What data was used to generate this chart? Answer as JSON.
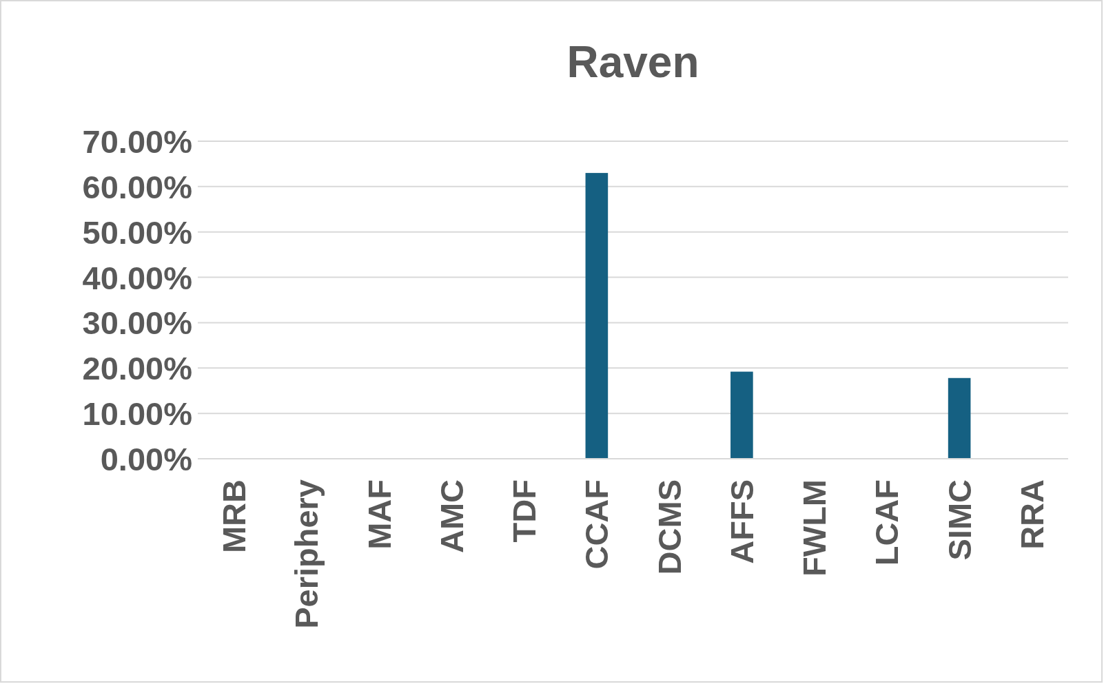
{
  "chart_data": {
    "type": "bar",
    "title": "Raven",
    "categories": [
      "MRB",
      "Periphery",
      "MAF",
      "AMC",
      "TDF",
      "CCAF",
      "DCMS",
      "AFFS",
      "FWLM",
      "LCAF",
      "SIMC",
      "RRA"
    ],
    "values": [
      0,
      0,
      0,
      0,
      0,
      63.0,
      0,
      19.2,
      0,
      0,
      17.8,
      0
    ],
    "color": "#156082",
    "ylim": [
      0,
      70
    ],
    "yticks": [
      {
        "value": 0,
        "label": "0.00%"
      },
      {
        "value": 10,
        "label": "10.00%"
      },
      {
        "value": 20,
        "label": "20.00%"
      },
      {
        "value": 30,
        "label": "30.00%"
      },
      {
        "value": 40,
        "label": "40.00%"
      },
      {
        "value": 50,
        "label": "50.00%"
      },
      {
        "value": 60,
        "label": "60.00%"
      },
      {
        "value": 70,
        "label": "70.00%"
      }
    ],
    "grid": "y"
  }
}
